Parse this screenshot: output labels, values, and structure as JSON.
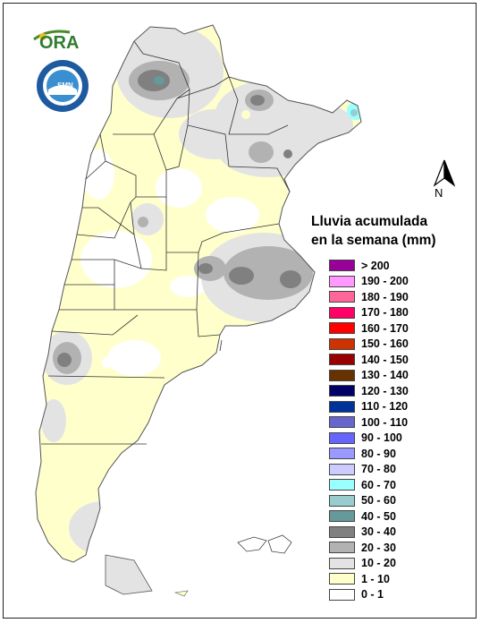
{
  "logo": {
    "text": "ORA"
  },
  "north_label": "N",
  "legend": {
    "title_line1": "Lluvia acumulada",
    "title_line2": "en la semana (mm)",
    "items": [
      {
        "label": "> 200",
        "color": "#990099"
      },
      {
        "label": "190 - 200",
        "color": "#ff99ff"
      },
      {
        "label": "180 - 190",
        "color": "#ff6699"
      },
      {
        "label": "170 - 180",
        "color": "#ff0066"
      },
      {
        "label": "160 - 170",
        "color": "#ff0000"
      },
      {
        "label": "150 - 160",
        "color": "#cc3300"
      },
      {
        "label": "140 - 150",
        "color": "#990000"
      },
      {
        "label": "130 - 140",
        "color": "#663300"
      },
      {
        "label": "120 - 130",
        "color": "#000066"
      },
      {
        "label": "110 - 120",
        "color": "#003399"
      },
      {
        "label": "100 - 110",
        "color": "#6666cc"
      },
      {
        "label": "90 - 100",
        "color": "#6666ff"
      },
      {
        "label": "80 - 90",
        "color": "#9999ff"
      },
      {
        "label": "70 - 80",
        "color": "#ccccff"
      },
      {
        "label": "60 - 70",
        "color": "#99ffff"
      },
      {
        "label": "50 - 60",
        "color": "#99cccc"
      },
      {
        "label": "40 - 50",
        "color": "#669999"
      },
      {
        "label": "30 - 40",
        "color": "#808080"
      },
      {
        "label": "20 - 30",
        "color": "#b2b2b2"
      },
      {
        "label": "10 - 20",
        "color": "#e3e3e3"
      },
      {
        "label": "1 - 10",
        "color": "#ffffcc"
      },
      {
        "label": "0 - 1",
        "color": "#ffffff"
      }
    ]
  }
}
